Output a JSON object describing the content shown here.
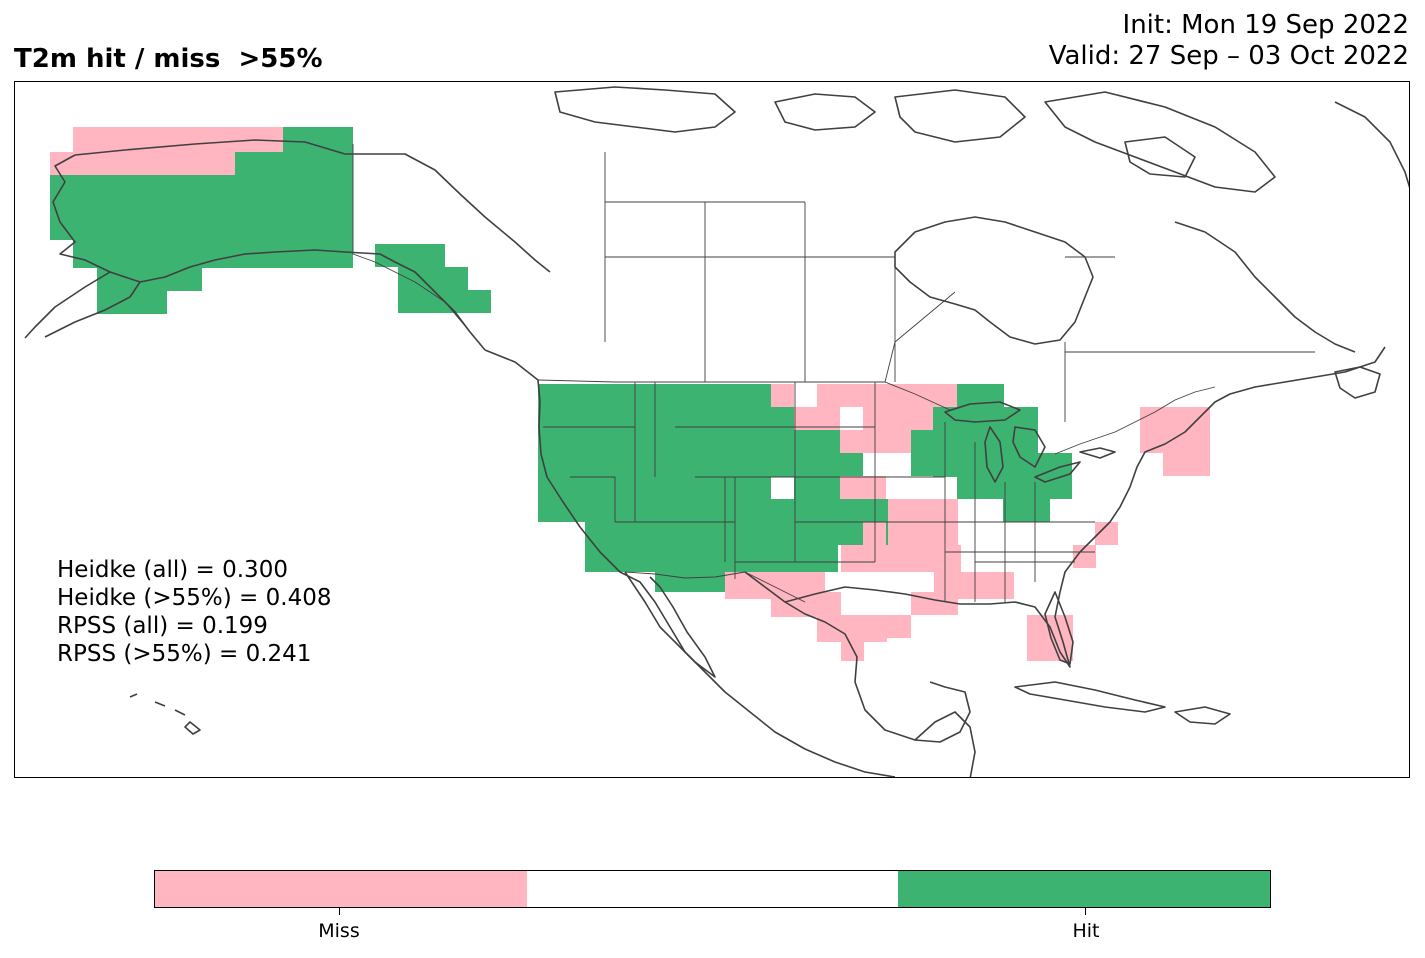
{
  "title": {
    "left": "T2m hit / miss  >55%",
    "init": "Init: Mon 19 Sep 2022",
    "valid": "Valid: 27 Sep – 03 Oct 2022"
  },
  "stats": [
    "Heidke (all) = 0.300",
    "Heidke (>55%) = 0.408",
    "RPSS (all) = 0.199",
    "RPSS (>55%) = 0.241"
  ],
  "colors": {
    "miss": "#ffb6c1",
    "neutral": "#ffffff",
    "hit": "#3cb371",
    "coast": "#404040",
    "border": "#404040"
  },
  "colorbar": {
    "segments": [
      "miss",
      "neutral",
      "hit"
    ],
    "labels": [
      "Miss",
      "Hit"
    ]
  },
  "map": {
    "projection": "lat-lon",
    "extent": [
      "170°W",
      "60°W",
      "8°N",
      "72°N"
    ],
    "legend_categories": [
      "miss",
      "hit"
    ]
  }
}
